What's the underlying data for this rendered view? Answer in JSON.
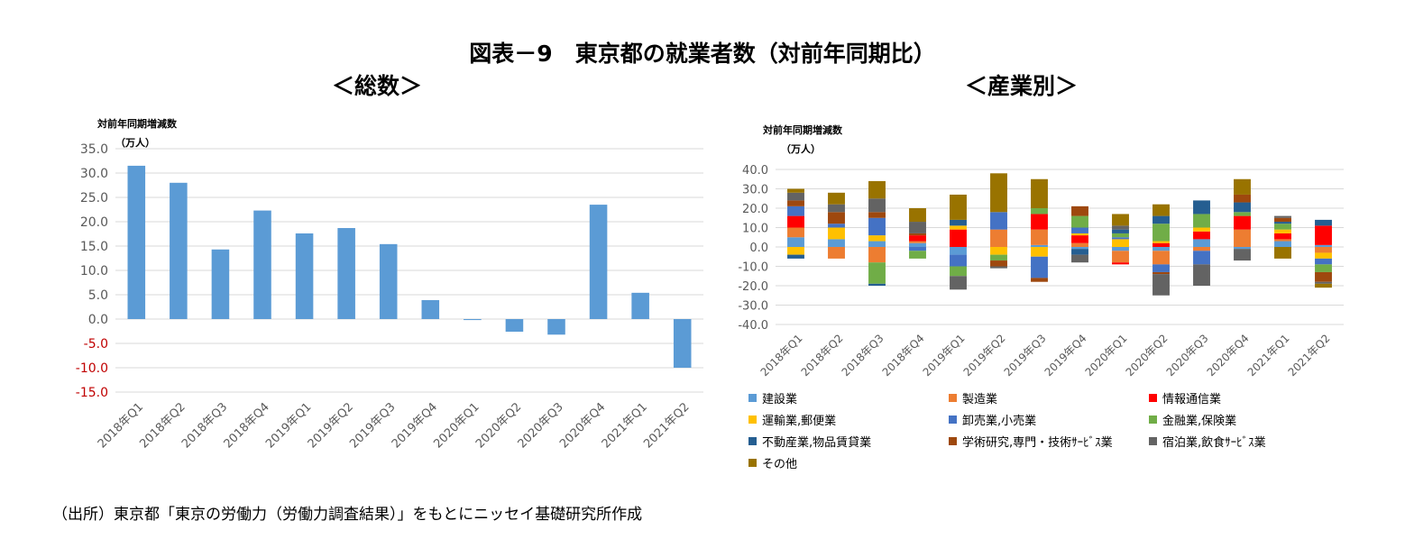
{
  "figure": {
    "title": "図表－9　東京都の就業者数（対前年同期比）",
    "panel_left_title": "＜総数＞",
    "panel_right_title": "＜産業別＞",
    "source": "（出所）東京都「東京の労働力（労働力調査結果）」をもとにニッセイ基礎研究所作成"
  },
  "colors": {
    "bar": "#5B9BD5",
    "negative_tick": "#C00000",
    "grid": "#D9D9D9",
    "tick_text": "#595959"
  },
  "chart_data": [
    {
      "type": "bar",
      "title": "総数",
      "ylabel": "対前年同期増減数",
      "yunit": "（万人）",
      "ylim": [
        -15,
        35
      ],
      "yticks": [
        "35.0",
        "30.0",
        "25.0",
        "20.0",
        "15.0",
        "10.0",
        "5.0",
        "0.0",
        "-5.0",
        "-10.0",
        "-15.0"
      ],
      "ytick_values": [
        35,
        30,
        25,
        20,
        15,
        10,
        5,
        0,
        -5,
        -10,
        -15
      ],
      "grid": true,
      "categories": [
        "2018年Q1",
        "2018年Q2",
        "2018年Q3",
        "2018年Q4",
        "2019年Q1",
        "2019年Q2",
        "2019年Q3",
        "2019年Q4",
        "2020年Q1",
        "2020年Q2",
        "2020年Q3",
        "2020年Q4",
        "2021年Q1",
        "2021年Q2"
      ],
      "values": [
        31.5,
        28.0,
        14.3,
        22.3,
        17.6,
        18.7,
        15.4,
        3.9,
        -0.2,
        -2.6,
        -3.2,
        23.5,
        5.4,
        -10.0
      ]
    },
    {
      "type": "bar",
      "stacked": true,
      "title": "産業別",
      "ylabel": "対前年同期増減数",
      "yunit": "（万人）",
      "ylim": [
        -40,
        40
      ],
      "yticks": [
        "40.0",
        "30.0",
        "20.0",
        "10.0",
        "0.0",
        "-10.0",
        "-20.0",
        "-30.0",
        "-40.0"
      ],
      "ytick_values": [
        40,
        30,
        20,
        10,
        0,
        -10,
        -20,
        -30,
        -40
      ],
      "grid": true,
      "legend_position": "bottom",
      "categories": [
        "2018年Q1",
        "2018年Q2",
        "2018年Q3",
        "2018年Q4",
        "2019年Q1",
        "2019年Q2",
        "2019年Q3",
        "2019年Q4",
        "2020年Q1",
        "2020年Q2",
        "2020年Q3",
        "2020年Q4",
        "2021年Q1",
        "2021年Q2"
      ],
      "series": [
        {
          "name": "建設業",
          "color": "#5B9BD5",
          "values": [
            5,
            4,
            3,
            2,
            -4,
            0,
            1,
            -1,
            -2,
            -2,
            4,
            -1,
            3,
            1
          ]
        },
        {
          "name": "製造業",
          "color": "#ED7D31",
          "values": [
            5,
            -6,
            -8,
            1,
            0,
            9,
            8,
            2,
            -6,
            -7,
            -2,
            9,
            1,
            -3
          ]
        },
        {
          "name": "情報通信業",
          "color": "#FF0000",
          "values": [
            6,
            0,
            0,
            3,
            9,
            0,
            8,
            4,
            -1,
            2,
            4,
            7,
            3,
            10
          ]
        },
        {
          "name": "運輸業,郵便業",
          "color": "#FFC000",
          "values": [
            -4,
            6,
            3,
            0,
            2,
            -4,
            -5,
            1,
            4,
            1,
            2,
            0,
            2,
            -3
          ]
        },
        {
          "name": "卸売業,小売業",
          "color": "#4472C4",
          "values": [
            5,
            2,
            9,
            -2,
            -6,
            9,
            -11,
            3,
            1,
            -4,
            -7,
            0,
            0,
            -3
          ]
        },
        {
          "name": "金融業,保険業",
          "color": "#70AD47",
          "values": [
            0,
            0,
            -11,
            -4,
            -5,
            -3,
            3,
            6,
            2,
            9,
            7,
            2,
            3,
            -4
          ]
        },
        {
          "name": "不動産業,物品賃貸業",
          "color": "#255E91",
          "values": [
            -2,
            0,
            -1,
            0,
            3,
            0,
            0,
            -3,
            2,
            4,
            7,
            5,
            1,
            3
          ]
        },
        {
          "name": "学術研究,専門・技術ｻｰﾋﾞｽ業",
          "color": "#9E480E",
          "values": [
            3,
            6,
            3,
            1,
            0,
            -3,
            -2,
            5,
            0,
            -1,
            0,
            4,
            2,
            -5
          ]
        },
        {
          "name": "宿泊業,飲食ｻｰﾋﾞｽ業",
          "color": "#636363",
          "values": [
            4,
            4,
            7,
            6,
            -7,
            -1,
            0,
            -4,
            2,
            -11,
            -11,
            -6,
            1,
            -1
          ]
        },
        {
          "name": "その他",
          "color": "#997300",
          "values": [
            2,
            6,
            9,
            7,
            13,
            20,
            15,
            0,
            6,
            6,
            0,
            8,
            -6,
            -2
          ]
        }
      ]
    }
  ]
}
